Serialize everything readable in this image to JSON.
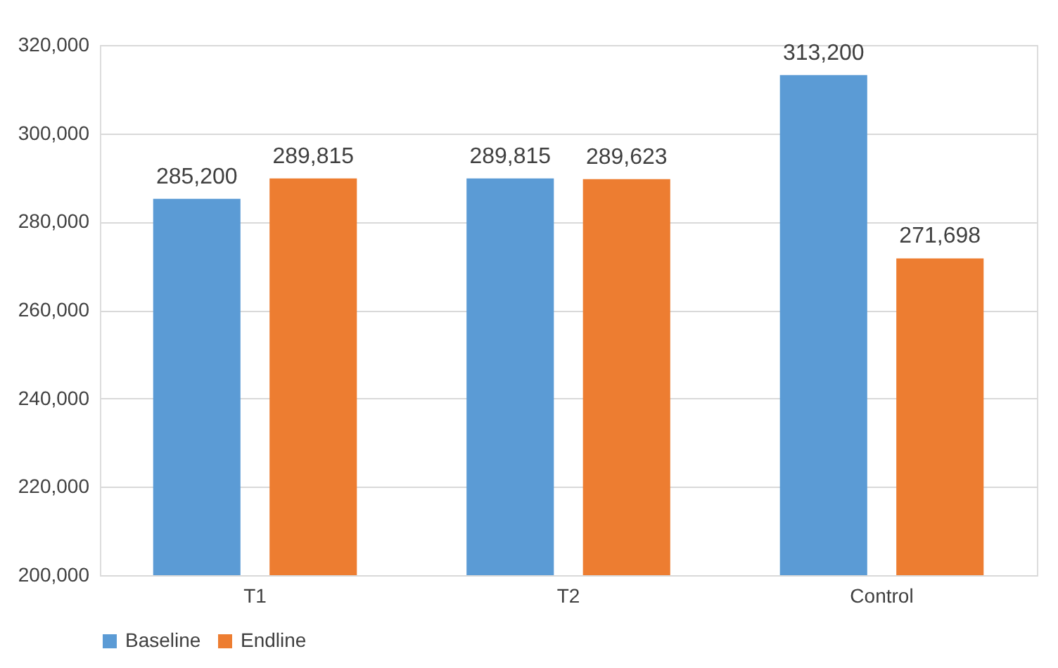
{
  "chart_data": {
    "type": "bar",
    "categories": [
      "T1",
      "T2",
      "Control"
    ],
    "series": [
      {
        "name": "Baseline",
        "color": "#5b9bd5",
        "values": [
          285200,
          289815,
          313200
        ],
        "value_labels": [
          "285,200",
          "289,815",
          "313,200"
        ]
      },
      {
        "name": "Endline",
        "color": "#ed7d31",
        "values": [
          289815,
          289623,
          271698
        ],
        "value_labels": [
          "289,815",
          "289,623",
          "271,698"
        ]
      }
    ],
    "ylim": [
      200000,
      320000
    ],
    "yticks": [
      {
        "value": 200000,
        "label": "200,000"
      },
      {
        "value": 220000,
        "label": "220,000"
      },
      {
        "value": 240000,
        "label": "240,000"
      },
      {
        "value": 260000,
        "label": "260,000"
      },
      {
        "value": 280000,
        "label": "280,000"
      },
      {
        "value": 300000,
        "label": "300,000"
      },
      {
        "value": 320000,
        "label": "320,000"
      }
    ],
    "grid": "y",
    "legend": "bottom"
  }
}
